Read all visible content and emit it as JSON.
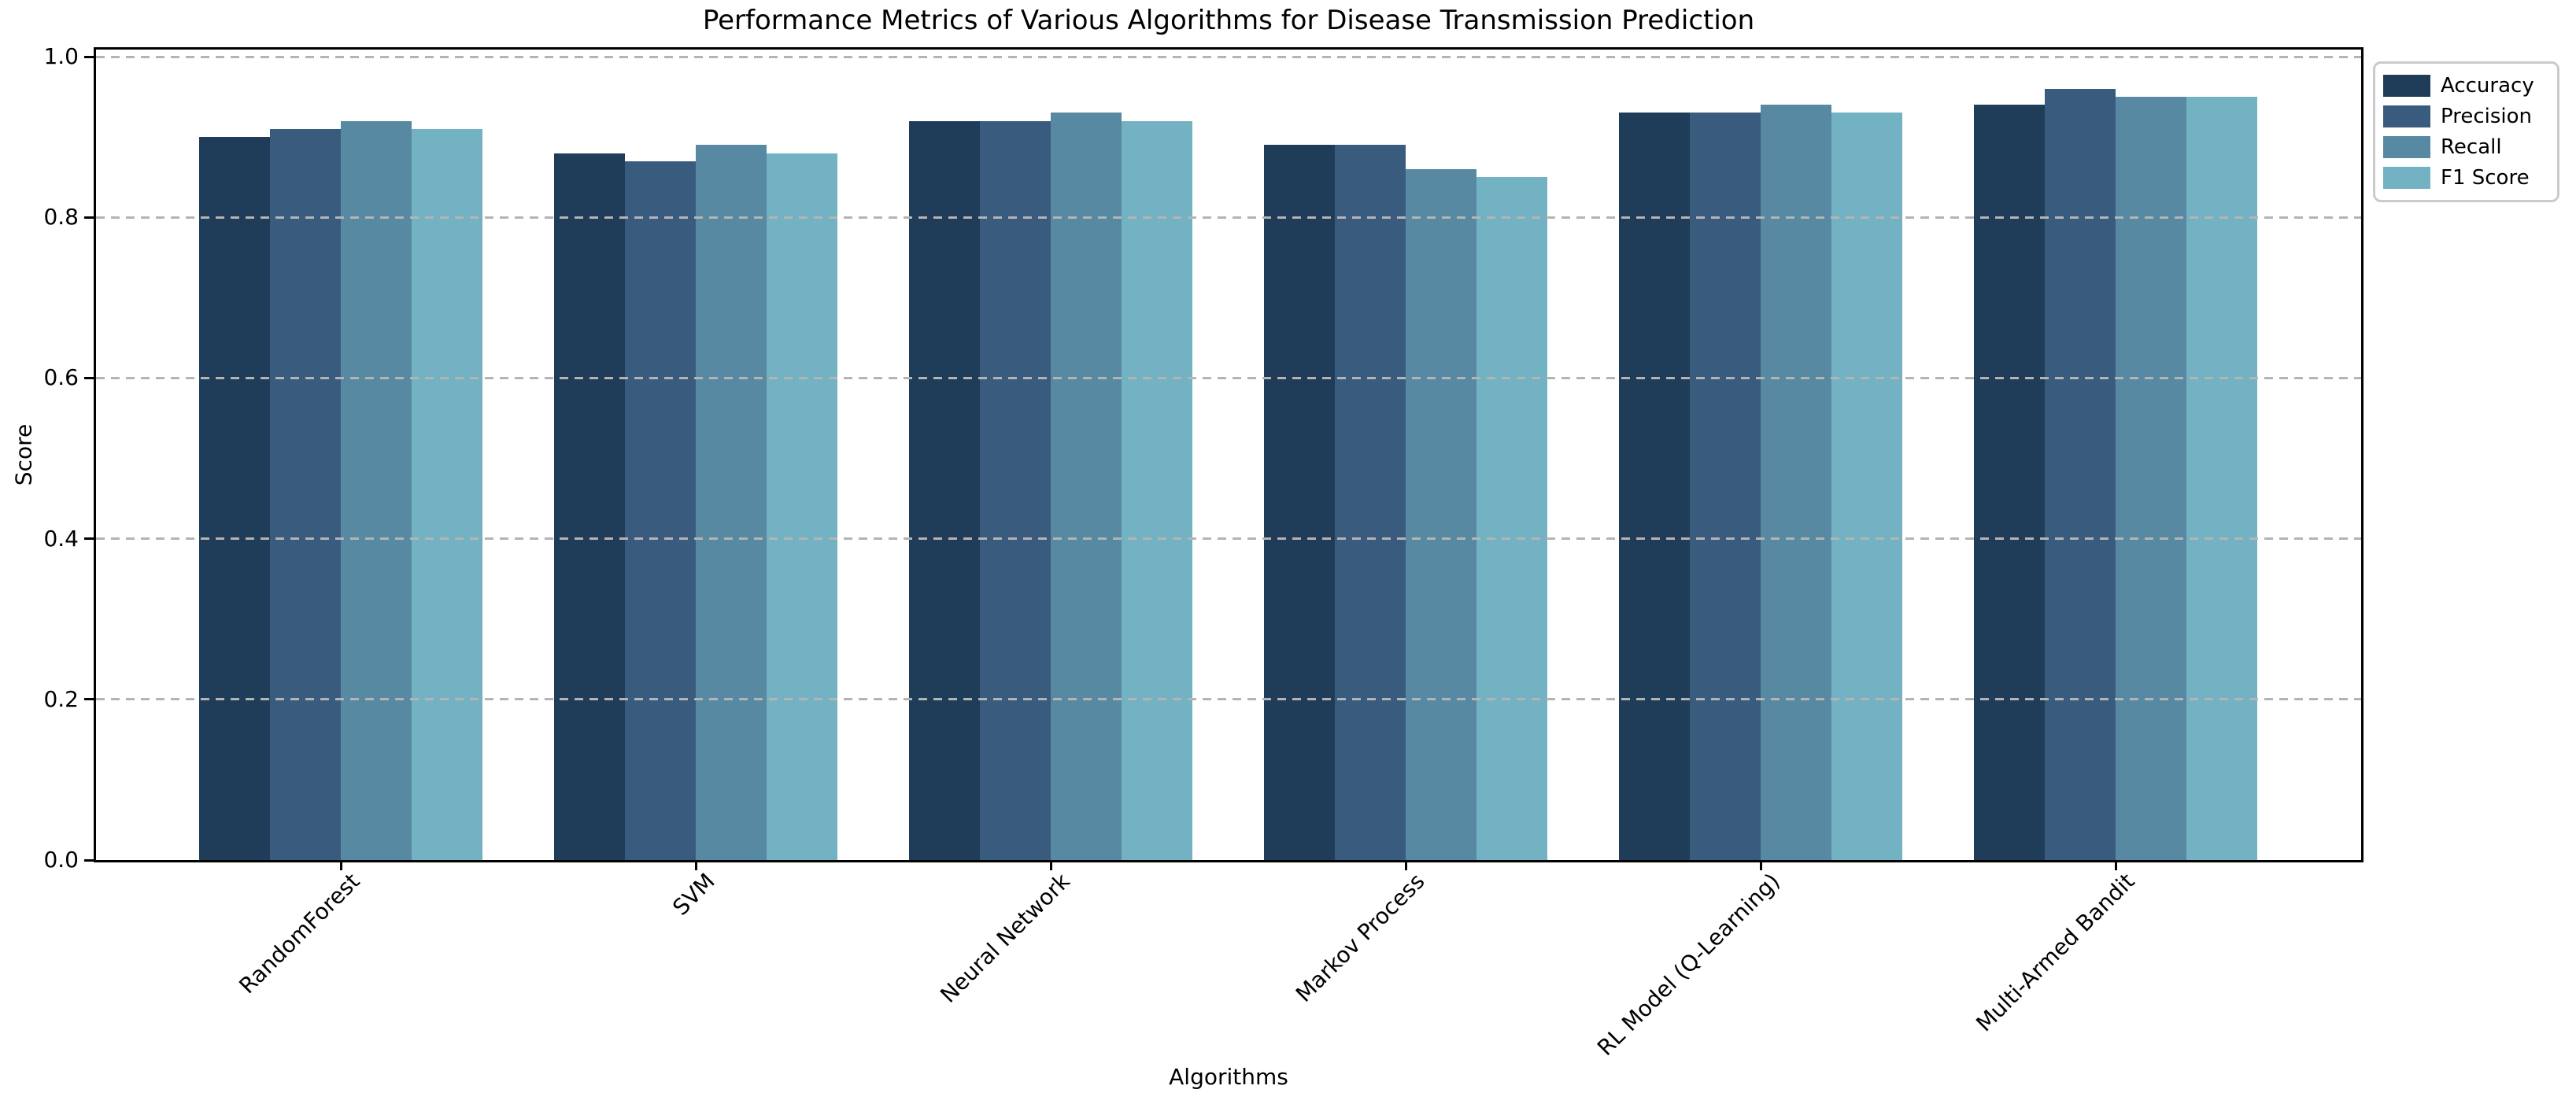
{
  "chart_data": {
    "type": "bar",
    "title": "Performance Metrics of Various Algorithms for Disease Transmission Prediction",
    "xlabel": "Algorithms",
    "ylabel": "Score",
    "categories": [
      "RandomForest",
      "SVM",
      "Neural Network",
      "Markov Process",
      "RL Model (Q-Learning)",
      "Multi-Armed Bandit"
    ],
    "series": [
      {
        "name": "Accuracy",
        "color": "#1f3c58",
        "values": [
          0.9,
          0.88,
          0.92,
          0.89,
          0.93,
          0.94
        ]
      },
      {
        "name": "Precision",
        "color": "#395c7e",
        "values": [
          0.91,
          0.87,
          0.92,
          0.89,
          0.93,
          0.96
        ]
      },
      {
        "name": "Recall",
        "color": "#5789a3",
        "values": [
          0.92,
          0.89,
          0.93,
          0.86,
          0.94,
          0.95
        ]
      },
      {
        "name": "F1 Score",
        "color": "#73b2c2",
        "values": [
          0.91,
          0.88,
          0.92,
          0.85,
          0.93,
          0.95
        ]
      }
    ],
    "ylim": [
      0.0,
      1.01
    ],
    "yticks": [
      0.0,
      0.2,
      0.4,
      0.6,
      0.8,
      1.0
    ],
    "grid": {
      "axis": "y",
      "style": "dashed",
      "color": "#b4b4b4",
      "above_bars": true
    },
    "legend": {
      "position": "upper-right-outside",
      "entries": [
        "Accuracy",
        "Precision",
        "Recall",
        "F1 Score"
      ]
    }
  }
}
